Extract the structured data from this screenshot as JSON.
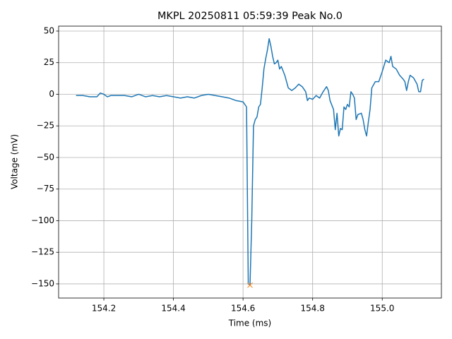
{
  "chart_data": {
    "type": "line",
    "title": "MKPL 20250811 05:59:39 Peak No.0",
    "x_label": "Time (ms)",
    "y_label": "Voltage (mV)",
    "xlim": [
      154.07,
      155.17
    ],
    "ylim": [
      -161.2,
      53.9
    ],
    "xticks": [
      154.2,
      154.4,
      154.6,
      154.8,
      {
        "value": 155,
        "label": "155.0"
      }
    ],
    "yticks": [
      {
        "value": -150,
        "label": "−150"
      },
      {
        "value": -125,
        "label": "−125"
      },
      {
        "value": -100,
        "label": "−100"
      },
      {
        "value": -75,
        "label": "−75"
      },
      {
        "value": -50,
        "label": "−50"
      },
      {
        "value": -25,
        "label": "−25"
      },
      0,
      25,
      50
    ],
    "grid": true,
    "series": [
      {
        "type": "line",
        "color": "#1f77b4",
        "x": [
          154.12,
          154.14,
          154.16,
          154.18,
          154.19,
          154.2,
          154.21,
          154.22,
          154.24,
          154.26,
          154.28,
          154.3,
          154.32,
          154.34,
          154.36,
          154.38,
          154.4,
          154.42,
          154.44,
          154.46,
          154.48,
          154.5,
          154.52,
          154.54,
          154.56,
          154.58,
          154.6,
          154.61,
          154.615,
          154.62,
          154.625,
          154.63,
          154.635,
          154.64,
          154.645,
          154.65,
          154.655,
          154.66,
          154.665,
          154.67,
          154.675,
          154.68,
          154.685,
          154.69,
          154.695,
          154.7,
          154.705,
          154.71,
          154.72,
          154.73,
          154.74,
          154.75,
          154.76,
          154.77,
          154.78,
          154.785,
          154.79,
          154.8,
          154.81,
          154.82,
          154.83,
          154.84,
          154.845,
          154.85,
          154.86,
          154.865,
          154.87,
          154.875,
          154.88,
          154.885,
          154.89,
          154.895,
          154.9,
          154.905,
          154.91,
          154.915,
          154.92,
          154.925,
          154.93,
          154.94,
          154.945,
          154.95,
          154.955,
          154.96,
          154.965,
          154.97,
          154.98,
          154.99,
          155.0,
          155.01,
          155.02,
          155.025,
          155.03,
          155.04,
          155.05,
          155.06,
          155.065,
          155.07,
          155.075,
          155.08,
          155.09,
          155.1,
          155.105,
          155.11,
          155.115,
          155.12
        ],
        "values": [
          -1,
          -1,
          -2,
          -2,
          1,
          0,
          -2,
          -1,
          -1,
          -1,
          -2,
          0,
          -2,
          -1,
          -2,
          -1,
          -2,
          -3,
          -2,
          -3,
          -1,
          0,
          -1,
          -2,
          -3,
          -5,
          -6,
          -10,
          -150,
          -151,
          -100,
          -25,
          -20,
          -18,
          -10,
          -8,
          5,
          20,
          28,
          35,
          44,
          38,
          30,
          24,
          25,
          27,
          20,
          22,
          15,
          5,
          3,
          5,
          8,
          6,
          2,
          -5,
          -3,
          -4,
          -1,
          -3,
          2,
          6,
          3,
          -5,
          -12,
          -28,
          -15,
          -33,
          -27,
          -28,
          -10,
          -12,
          -8,
          -10,
          2,
          0,
          -3,
          -20,
          -16,
          -15,
          -20,
          -28,
          -33,
          -22,
          -12,
          5,
          10,
          10,
          18,
          27,
          25,
          30,
          22,
          20,
          15,
          12,
          10,
          3,
          10,
          15,
          13,
          8,
          2,
          2,
          11,
          12
        ]
      },
      {
        "type": "scatter",
        "color": "#ff7f0e",
        "marker": "x",
        "x": [
          154.62
        ],
        "values": [
          -151
        ]
      }
    ]
  }
}
